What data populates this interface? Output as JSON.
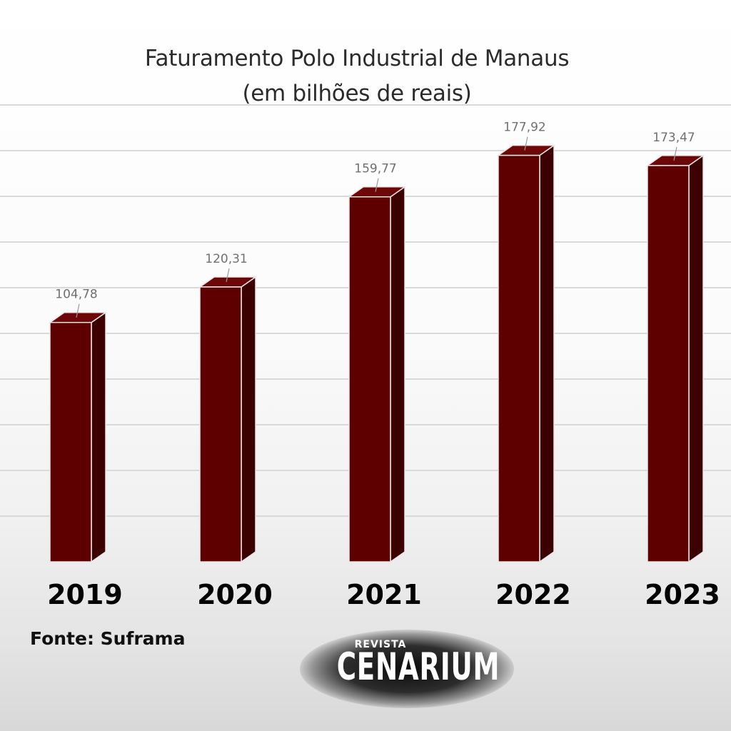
{
  "chart_data": {
    "type": "bar",
    "title": "Faturamento Polo Industrial de Manaus",
    "subtitle": "(em bilhões de reais)",
    "categories": [
      "2019",
      "2020",
      "2021",
      "2022",
      "2023"
    ],
    "values": [
      104.78,
      120.31,
      159.77,
      177.92,
      173.47
    ],
    "value_labels": [
      "104,78",
      "120,31",
      "159,77",
      "177,92",
      "173,47"
    ],
    "xlabel": "",
    "ylabel": "",
    "ylim": [
      0,
      200
    ],
    "grid": true,
    "legend": "none",
    "bar_style": "3d",
    "colors": {
      "bar_front": "#5e0000",
      "bar_side": "#3c0000",
      "bar_top": "#6e0808",
      "grid": "#d9d9d9"
    }
  },
  "source": "Fonte: Suframa",
  "logo": {
    "small": "REVISTA",
    "big": "CENARIUM"
  }
}
